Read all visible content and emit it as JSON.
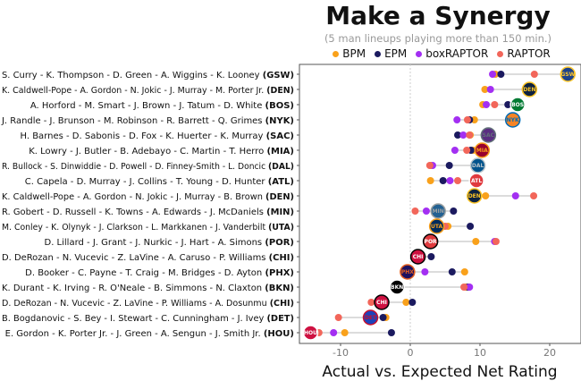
{
  "title": "Make a Synergy",
  "subtitle": "(5 man lineups playing more than 150 min.)",
  "colors": {
    "BPM": "#f9a11b",
    "EPM": "#1b1a5f",
    "boxRAPTOR": "#a32ff2",
    "RAPTOR": "#f2665a"
  },
  "chart_data": {
    "type": "scatter",
    "title": "Make a Synergy",
    "subtitle": "(5 man lineups playing more than 150 min.)",
    "xlabel": "Actual vs. Expected Net Rating",
    "ylabel": "",
    "xlim": [
      -16,
      25
    ],
    "xticks": [
      -10,
      0,
      10,
      20
    ],
    "grid": false,
    "legend_position": "top",
    "metrics": [
      "BPM",
      "EPM",
      "boxRAPTOR",
      "RAPTOR"
    ],
    "rows": [
      {
        "lineup": "S. Curry - K. Thompson - D. Green - A. Wiggins - K. Looney",
        "team": "GSW",
        "logo_color": "#1d428a",
        "logo_accent": "#ffc72c",
        "actual": 22.6,
        "BPM": 12.2,
        "EPM": 13.0,
        "boxRAPTOR": 11.8,
        "RAPTOR": 17.8
      },
      {
        "lineup": "K. Caldwell-Pope - A. Gordon - N. Jokic - J. Murray - M. Porter Jr.",
        "team": "DEN",
        "logo_color": "#0e2240",
        "logo_accent": "#fec524",
        "actual": 17.1,
        "BPM": 10.7,
        "EPM": 17.0,
        "boxRAPTOR": 11.5,
        "RAPTOR": 16.5
      },
      {
        "lineup": "A. Horford - M. Smart - J. Brown - J. Tatum - D. White",
        "team": "BOS",
        "logo_color": "#007a33",
        "logo_accent": "#ffffff",
        "actual": 15.4,
        "BPM": 10.4,
        "EPM": 14.0,
        "boxRAPTOR": 10.9,
        "RAPTOR": 12.1
      },
      {
        "lineup": "J. Randle - J. Brunson - M. Robinson - R. Barrett - Q. Grimes",
        "team": "NYK",
        "logo_color": "#f58426",
        "logo_accent": "#006bb6",
        "actual": 14.7,
        "BPM": 9.2,
        "EPM": 8.5,
        "boxRAPTOR": 6.7,
        "RAPTOR": 8.2
      },
      {
        "lineup": "H. Barnes - D. Sabonis - D. Fox - K. Huerter - K. Murray",
        "team": "SAC",
        "logo_color": "#5a2d81",
        "logo_accent": "#63727a",
        "actual": 11.2,
        "BPM": 8.6,
        "EPM": 6.8,
        "boxRAPTOR": 7.6,
        "RAPTOR": 8.5
      },
      {
        "lineup": "K. Lowry - J. Butler - B. Adebayo - C. Martin - T. Herro",
        "team": "MIA",
        "logo_color": "#98002e",
        "logo_accent": "#f9a01b",
        "actual": 10.3,
        "BPM": 9.0,
        "EPM": 8.7,
        "boxRAPTOR": 6.4,
        "RAPTOR": 8.1
      },
      {
        "lineup": "R. Bullock - S. Dinwiddie - D. Powell - D. Finney-Smith - L. Doncic",
        "team": "DAL",
        "logo_color": "#00538c",
        "logo_accent": "#b8c4ca",
        "actual": 9.7,
        "BPM": 2.9,
        "EPM": 5.6,
        "boxRAPTOR": 3.2,
        "RAPTOR": 2.8
      },
      {
        "lineup": "C. Capela - D. Murray - J. Collins - T. Young - D. Hunter",
        "team": "ATL",
        "logo_color": "#e03a3e",
        "logo_accent": "#ffffff",
        "actual": 9.5,
        "BPM": 2.9,
        "EPM": 4.7,
        "boxRAPTOR": 5.7,
        "RAPTOR": 6.8
      },
      {
        "lineup": "K. Caldwell-Pope - A. Gordon - N. Jokic - J. Murray - B. Brown",
        "team": "DEN",
        "logo_color": "#0e2240",
        "logo_accent": "#fec524",
        "actual": 9.2,
        "BPM": 10.8,
        "EPM": 9.0,
        "boxRAPTOR": 15.1,
        "RAPTOR": 17.7
      },
      {
        "lineup": "R. Gobert - D. Russell - K. Towns - A. Edwards - J. McDaniels",
        "team": "MIN",
        "logo_color": "#236192",
        "logo_accent": "#9ea2a2",
        "actual": 4.0,
        "BPM": 4.0,
        "EPM": 6.2,
        "boxRAPTOR": 2.3,
        "RAPTOR": 0.7
      },
      {
        "lineup": "M. Conley - K. Olynyk - J. Clarkson - L. Markkanen - J. Vanderbilt",
        "team": "UTA",
        "logo_color": "#002b5c",
        "logo_accent": "#f9a01b",
        "actual": 3.8,
        "BPM": 5.4,
        "EPM": 8.6,
        "boxRAPTOR": 4.0,
        "RAPTOR": 5.0
      },
      {
        "lineup": "D. Lillard - J. Grant - J. Nurkic - J. Hart - A. Simons",
        "team": "POR",
        "logo_color": "#e03a3e",
        "logo_accent": "#000000",
        "actual": 2.9,
        "BPM": 9.4,
        "EPM": 2.9,
        "boxRAPTOR": 12.1,
        "RAPTOR": 12.3
      },
      {
        "lineup": "D. DeRozan - N. Vucevic - Z. LaVine - A. Caruso - P. Williams",
        "team": "CHI",
        "logo_color": "#ce1141",
        "logo_accent": "#000000",
        "actual": 1.1,
        "BPM": 1.5,
        "EPM": 3.0,
        "boxRAPTOR": 1.5,
        "RAPTOR": 1.5
      },
      {
        "lineup": "D. Booker - C. Payne - T. Craig - M. Bridges - D. Ayton",
        "team": "PHX",
        "logo_color": "#1d1160",
        "logo_accent": "#e56020",
        "actual": -0.4,
        "BPM": 7.8,
        "EPM": 6.0,
        "boxRAPTOR": 2.1,
        "RAPTOR": -0.4
      },
      {
        "lineup": "K. Durant - K. Irving - R. O'Neale - B. Simmons - N. Claxton",
        "team": "BKN",
        "logo_color": "#000000",
        "logo_accent": "#ffffff",
        "actual": -1.9,
        "BPM": 8.0,
        "EPM": 8.3,
        "boxRAPTOR": 8.5,
        "RAPTOR": 7.7
      },
      {
        "lineup": "D. DeRozan - N. Vucevic - Z. LaVine - P. Williams - A. Dosunmu",
        "team": "CHI",
        "logo_color": "#ce1141",
        "logo_accent": "#000000",
        "actual": -4.1,
        "BPM": -0.6,
        "EPM": 0.3,
        "boxRAPTOR": -4.0,
        "RAPTOR": -5.6
      },
      {
        "lineup": "B. Bogdanovic - S. Bey - I. Stewart - C. Cunningham - J. Ivey",
        "team": "DET",
        "logo_color": "#1d42ba",
        "logo_accent": "#c8102e",
        "actual": -5.7,
        "BPM": -3.5,
        "EPM": -3.9,
        "boxRAPTOR": -5.7,
        "RAPTOR": -10.3
      },
      {
        "lineup": "E. Gordon - K. Porter Jr. - J. Green - A. Sengun - J. Smith Jr.",
        "team": "HOU",
        "logo_color": "#ce1141",
        "logo_accent": "#ffffff",
        "actual": -14.3,
        "BPM": -9.4,
        "EPM": -2.7,
        "boxRAPTOR": -11.0,
        "RAPTOR": -13.1
      }
    ]
  }
}
